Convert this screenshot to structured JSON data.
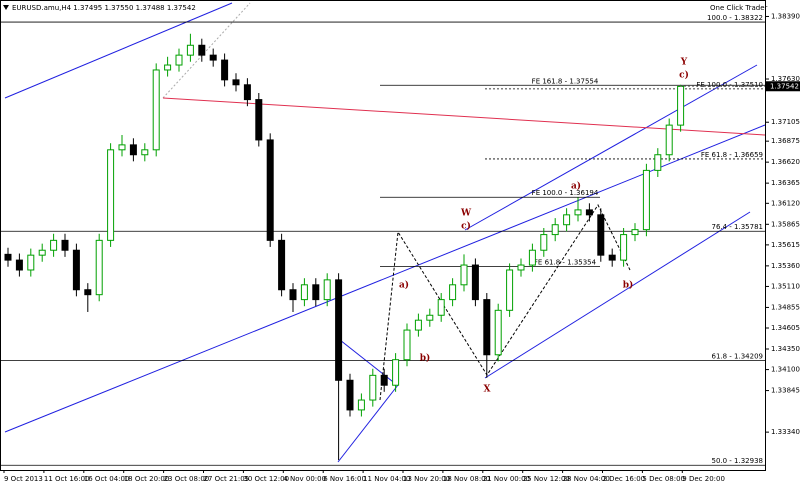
{
  "chart_data": {
    "type": "candlestick",
    "header": "EURUSD.amu,H4  1.37495 1.37550 1.37488 1.37542",
    "toolbar_label": "One Click Trader",
    "last_price": 1.37542,
    "up_color": "#00a000",
    "down_color": "#000000",
    "open": [
      1.355,
      1.3543,
      1.3531,
      1.3549,
      1.3555,
      1.3567,
      1.3555,
      1.3507,
      1.3501,
      1.3567,
      1.3677,
      1.3683,
      1.3671,
      1.3677,
      1.3774,
      1.378,
      1.3792,
      1.3804,
      1.3792,
      1.3786,
      1.3762,
      1.3756,
      1.3738,
      1.3689,
      1.3567,
      1.3507,
      1.3495,
      1.3513,
      1.3495,
      1.3519,
      1.3397,
      1.3361,
      1.3373,
      1.3403,
      1.3391,
      1.3422,
      1.3458,
      1.347,
      1.3476,
      1.3495,
      1.3513,
      1.3537,
      1.3495,
      1.3428,
      1.3482,
      1.3531,
      1.3537,
      1.3555,
      1.3574,
      1.3586,
      1.3598,
      1.3604,
      1.3598,
      1.3549,
      1.3543,
      1.3574,
      1.358,
      1.3652,
      1.3671,
      1.3707
    ],
    "high": [
      1.3558,
      1.3551,
      1.3557,
      1.3563,
      1.3575,
      1.3575,
      1.3563,
      1.3515,
      1.3575,
      1.3685,
      1.3695,
      1.3691,
      1.3685,
      1.3782,
      1.379,
      1.38,
      1.3818,
      1.3812,
      1.38,
      1.3794,
      1.377,
      1.3764,
      1.3746,
      1.3697,
      1.3575,
      1.3515,
      1.3521,
      1.3521,
      1.3527,
      1.3527,
      1.3405,
      1.3381,
      1.3411,
      1.3411,
      1.343,
      1.3466,
      1.3478,
      1.3484,
      1.3503,
      1.3521,
      1.355,
      1.3545,
      1.3503,
      1.349,
      1.3539,
      1.3545,
      1.3563,
      1.3582,
      1.3594,
      1.3606,
      1.3619,
      1.3612,
      1.3606,
      1.3557,
      1.3582,
      1.3588,
      1.366,
      1.3679,
      1.3715,
      1.3756
    ],
    "low": [
      1.3535,
      1.3523,
      1.3523,
      1.3541,
      1.3547,
      1.3547,
      1.3499,
      1.348,
      1.3493,
      1.3559,
      1.3669,
      1.3663,
      1.3663,
      1.3669,
      1.3766,
      1.3772,
      1.3784,
      1.3784,
      1.3778,
      1.3754,
      1.3748,
      1.373,
      1.3681,
      1.3559,
      1.3499,
      1.348,
      1.3487,
      1.3487,
      1.3487,
      1.33,
      1.3353,
      1.3353,
      1.3365,
      1.3383,
      1.3383,
      1.3414,
      1.345,
      1.3462,
      1.3468,
      1.3487,
      1.3505,
      1.3487,
      1.34,
      1.342,
      1.3474,
      1.3523,
      1.3529,
      1.3547,
      1.3566,
      1.3578,
      1.359,
      1.359,
      1.3541,
      1.3535,
      1.3535,
      1.3566,
      1.3572,
      1.3644,
      1.3663,
      1.3699
    ],
    "close": [
      1.3543,
      1.3531,
      1.3549,
      1.3555,
      1.3567,
      1.3555,
      1.3507,
      1.3501,
      1.3567,
      1.3677,
      1.3683,
      1.3671,
      1.3677,
      1.3774,
      1.378,
      1.3792,
      1.3804,
      1.3792,
      1.3786,
      1.3762,
      1.3756,
      1.3738,
      1.3689,
      1.3567,
      1.3507,
      1.3495,
      1.3513,
      1.3495,
      1.3519,
      1.3397,
      1.3361,
      1.3373,
      1.3403,
      1.3391,
      1.3422,
      1.3458,
      1.347,
      1.3476,
      1.3495,
      1.3513,
      1.3537,
      1.3495,
      1.3428,
      1.3482,
      1.3531,
      1.3537,
      1.3555,
      1.3574,
      1.3586,
      1.3598,
      1.3604,
      1.3598,
      1.3549,
      1.3543,
      1.3574,
      1.358,
      1.3652,
      1.3671,
      1.3707,
      1.3754
    ],
    "ylim": [
      1.3288,
      1.3859
    ],
    "yticks": [
      {
        "value": 1.3839,
        "label": "1.38390"
      },
      {
        "value": 1.3763,
        "label": "1.37630"
      },
      1.37105,
      1.36875,
      {
        "value": 1.3662,
        "label": "1.36620"
      },
      1.36365,
      {
        "value": 1.3612,
        "label": "1.36120"
      },
      1.35865,
      1.35615,
      {
        "value": 1.3536,
        "label": "1.35360"
      },
      {
        "value": 1.3511,
        "label": "1.35110"
      },
      1.34855,
      1.34605,
      {
        "value": 1.3435,
        "label": "1.34350"
      },
      {
        "value": 1.341,
        "label": "1.34100"
      },
      1.33845,
      {
        "value": 1.3334,
        "label": "1.33340"
      }
    ],
    "x_labels": [
      "9 Oct 2013",
      "11 Oct 16:00",
      "16 Oct 04:00",
      "18 Oct 20:00",
      "23 Oct 08:00",
      "27 Oct 21:05",
      "30 Oct 12:00",
      "4 Nov 00:00",
      "6 Nov 16:00",
      "11 Nov 04:00",
      "13 Nov 20:00",
      "18 Nov 08:00",
      "21 Nov 00:00",
      "25 Nov 12:00",
      "28 Nov 04:00",
      "2 Dec 16:00",
      "5 Dec 08:00",
      "9 Dec 20:00"
    ],
    "levels": [
      {
        "label": "100.0 - 1.38322",
        "value": 1.38322,
        "style": "solid"
      },
      {
        "label": "FE 161.8 - 1.37554",
        "value": 1.37554,
        "style": "solid"
      },
      {
        "label": "FE 100.0 - 1.37510",
        "value": 1.3751,
        "style": "dotted"
      },
      {
        "label": "FE 61.8 - 1.36659",
        "value": 1.36659,
        "style": "dotted"
      },
      {
        "label": "FE 100.0 - 1.36194",
        "value": 1.36194,
        "style": "solid"
      },
      {
        "label": "76.4 - 1.35781",
        "value": 1.35781,
        "style": "solid"
      },
      {
        "label": "FE 61.8 - 1.35354",
        "value": 1.35354,
        "style": "solid"
      },
      {
        "label": "61.8 - 1.34209",
        "value": 1.34209,
        "style": "solid"
      },
      {
        "label": "50.0 - 1.32938",
        "value": 1.32938,
        "style": "solid"
      }
    ],
    "wave_labels": [
      "Y",
      "c)",
      "W",
      "c)",
      "a)",
      "a)",
      "b)",
      "b)",
      "X"
    ]
  }
}
